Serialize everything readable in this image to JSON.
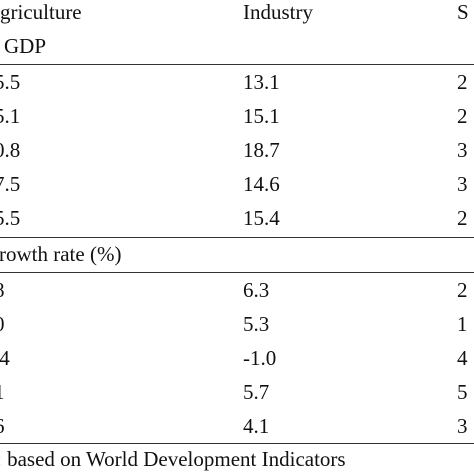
{
  "header": {
    "agriculture": "griculture",
    "industry": "Industry",
    "services": "S"
  },
  "sections": [
    {
      "label": "GDP",
      "rows": [
        {
          "agriculture": "5.5",
          "industry": "13.1",
          "services": "2"
        },
        {
          "agriculture": "5.1",
          "industry": "15.1",
          "services": "2"
        },
        {
          "agriculture": "0.8",
          "industry": "18.7",
          "services": "3"
        },
        {
          "agriculture": "7.5",
          "industry": "14.6",
          "services": "3"
        },
        {
          "agriculture": "5.5",
          "industry": "15.4",
          "services": "2"
        }
      ]
    },
    {
      "label": "rowth rate (%)",
      "rows": [
        {
          "agriculture": "8",
          "industry": "6.3",
          "services": "2"
        },
        {
          "agriculture": "0",
          "industry": "5.3",
          "services": "1"
        },
        {
          "agriculture": ".4",
          "industry": "-1.0",
          "services": "4"
        },
        {
          "agriculture": "1",
          "industry": "5.7",
          "services": "5"
        },
        {
          "agriculture": "6",
          "industry": "4.1",
          "services": "3"
        }
      ]
    }
  ],
  "footnote": ": based on World Development Indicators"
}
